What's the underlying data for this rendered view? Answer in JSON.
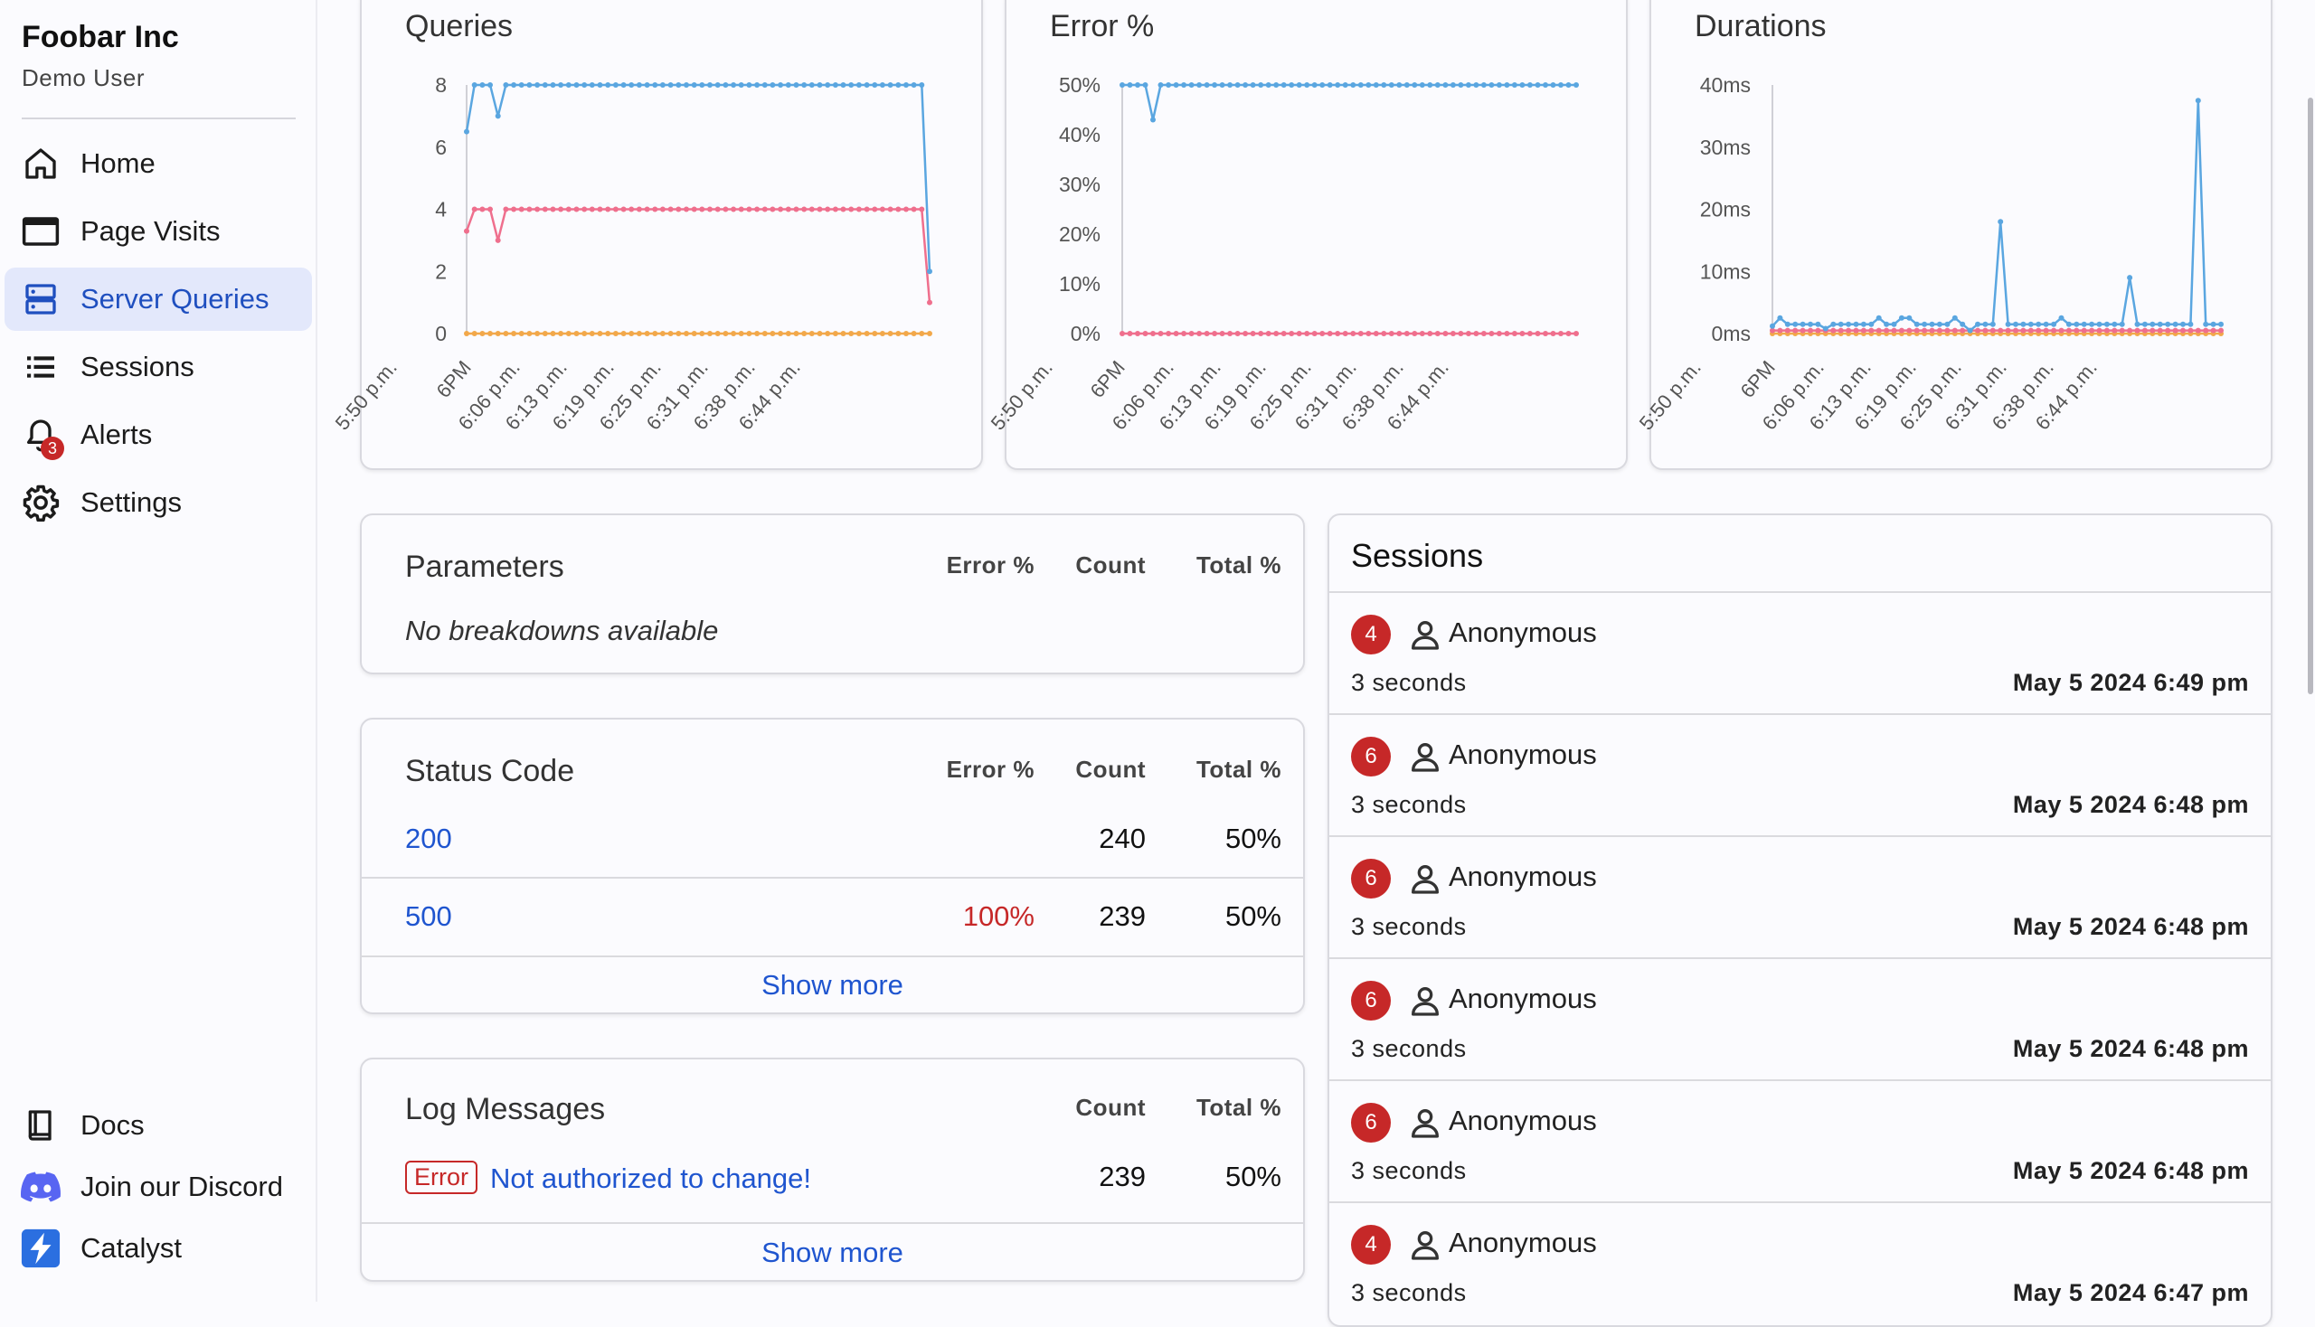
{
  "sidebar": {
    "org_name": "Foobar Inc",
    "user_name": "Demo User",
    "items": [
      {
        "label": "Home",
        "icon": "home-icon"
      },
      {
        "label": "Page Visits",
        "icon": "browser-window-icon"
      },
      {
        "label": "Server Queries",
        "icon": "server-icon",
        "active": true
      },
      {
        "label": "Sessions",
        "icon": "list-icon"
      },
      {
        "label": "Alerts",
        "icon": "bell-icon",
        "badge": "3"
      },
      {
        "label": "Settings",
        "icon": "gear-icon"
      }
    ],
    "bottom_items": [
      {
        "label": "Docs",
        "icon": "book-icon"
      },
      {
        "label": "Join our Discord",
        "icon": "discord-icon"
      },
      {
        "label": "Catalyst",
        "icon": "catalyst-logo-icon"
      }
    ]
  },
  "colors": {
    "accent": "#1f55cf",
    "active_bg": "#e3e8fb",
    "error": "#c62828",
    "series_blue": "#5aa6e0",
    "series_pink": "#ef6f8d",
    "series_orange": "#f2a84a"
  },
  "chart_data": [
    {
      "type": "line",
      "title": "Queries",
      "ylim": [
        0,
        8
      ],
      "y_ticks": [
        "0",
        "2",
        "4",
        "6",
        "8"
      ],
      "x_ticks": [
        "5:50 p.m.",
        "6PM",
        "6:06 p.m.",
        "6:13 p.m.",
        "6:19 p.m.",
        "6:25 p.m.",
        "6:31 p.m.",
        "6:38 p.m.",
        "6:44 p.m."
      ],
      "n_points": 60,
      "series": [
        {
          "color": "#5aa6e0",
          "values": [
            6.5,
            8,
            8,
            8,
            7,
            8,
            8,
            8,
            8,
            8,
            8,
            8,
            8,
            8,
            8,
            8,
            8,
            8,
            8,
            8,
            8,
            8,
            8,
            8,
            8,
            8,
            8,
            8,
            8,
            8,
            8,
            8,
            8,
            8,
            8,
            8,
            8,
            8,
            8,
            8,
            8,
            8,
            8,
            8,
            8,
            8,
            8,
            8,
            8,
            8,
            8,
            8,
            8,
            8,
            8,
            8,
            8,
            8,
            8,
            2
          ]
        },
        {
          "color": "#ef6f8d",
          "values": [
            3.3,
            4,
            4,
            4,
            3,
            4,
            4,
            4,
            4,
            4,
            4,
            4,
            4,
            4,
            4,
            4,
            4,
            4,
            4,
            4,
            4,
            4,
            4,
            4,
            4,
            4,
            4,
            4,
            4,
            4,
            4,
            4,
            4,
            4,
            4,
            4,
            4,
            4,
            4,
            4,
            4,
            4,
            4,
            4,
            4,
            4,
            4,
            4,
            4,
            4,
            4,
            4,
            4,
            4,
            4,
            4,
            4,
            4,
            4,
            1
          ]
        },
        {
          "color": "#f2a84a",
          "values": [
            0,
            0,
            0,
            0,
            0,
            0,
            0,
            0,
            0,
            0,
            0,
            0,
            0,
            0,
            0,
            0,
            0,
            0,
            0,
            0,
            0,
            0,
            0,
            0,
            0,
            0,
            0,
            0,
            0,
            0,
            0,
            0,
            0,
            0,
            0,
            0,
            0,
            0,
            0,
            0,
            0,
            0,
            0,
            0,
            0,
            0,
            0,
            0,
            0,
            0,
            0,
            0,
            0,
            0,
            0,
            0,
            0,
            0,
            0,
            0
          ]
        }
      ]
    },
    {
      "type": "line",
      "title": "Error %",
      "ylim": [
        0,
        50
      ],
      "y_ticks": [
        "0%",
        "10%",
        "20%",
        "30%",
        "40%",
        "50%"
      ],
      "x_ticks": [
        "5:50 p.m.",
        "6PM",
        "6:06 p.m.",
        "6:13 p.m.",
        "6:19 p.m.",
        "6:25 p.m.",
        "6:31 p.m.",
        "6:38 p.m.",
        "6:44 p.m."
      ],
      "n_points": 60,
      "series": [
        {
          "color": "#5aa6e0",
          "values": [
            50,
            50,
            50,
            50,
            43,
            50,
            50,
            50,
            50,
            50,
            50,
            50,
            50,
            50,
            50,
            50,
            50,
            50,
            50,
            50,
            50,
            50,
            50,
            50,
            50,
            50,
            50,
            50,
            50,
            50,
            50,
            50,
            50,
            50,
            50,
            50,
            50,
            50,
            50,
            50,
            50,
            50,
            50,
            50,
            50,
            50,
            50,
            50,
            50,
            50,
            50,
            50,
            50,
            50,
            50,
            50,
            50,
            50,
            50,
            50
          ]
        },
        {
          "color": "#ef6f8d",
          "values": [
            0,
            0,
            0,
            0,
            0,
            0,
            0,
            0,
            0,
            0,
            0,
            0,
            0,
            0,
            0,
            0,
            0,
            0,
            0,
            0,
            0,
            0,
            0,
            0,
            0,
            0,
            0,
            0,
            0,
            0,
            0,
            0,
            0,
            0,
            0,
            0,
            0,
            0,
            0,
            0,
            0,
            0,
            0,
            0,
            0,
            0,
            0,
            0,
            0,
            0,
            0,
            0,
            0,
            0,
            0,
            0,
            0,
            0,
            0,
            0
          ]
        }
      ]
    },
    {
      "type": "line",
      "title": "Durations",
      "ylim": [
        0,
        40
      ],
      "y_ticks": [
        "0ms",
        "10ms",
        "20ms",
        "30ms",
        "40ms"
      ],
      "x_ticks": [
        "5:50 p.m.",
        "6PM",
        "6:06 p.m.",
        "6:13 p.m.",
        "6:19 p.m.",
        "6:25 p.m.",
        "6:31 p.m.",
        "6:38 p.m.",
        "6:44 p.m."
      ],
      "n_points": 60,
      "series": [
        {
          "color": "#5aa6e0",
          "values": [
            1.2,
            2.5,
            1.5,
            1.5,
            1.5,
            1.5,
            1.5,
            0.8,
            1.5,
            1.5,
            1.5,
            1.5,
            1.5,
            1.5,
            2.5,
            1.5,
            1.5,
            2.5,
            2.5,
            1.5,
            1.5,
            1.5,
            1.5,
            1.5,
            2.5,
            1.5,
            0.5,
            1.5,
            1.5,
            1.5,
            18,
            1.5,
            1.5,
            1.5,
            1.5,
            1.5,
            1.5,
            1.5,
            2.5,
            1.5,
            1.5,
            1.5,
            1.5,
            1.5,
            1.5,
            1.5,
            1.5,
            9,
            1.5,
            1.5,
            1.5,
            1.5,
            1.5,
            1.5,
            1.5,
            1.5,
            37.5,
            1.5,
            1.5,
            1.5
          ]
        },
        {
          "color": "#ef6f8d",
          "values": [
            0.5,
            0.5,
            0.5,
            0.5,
            0.5,
            0.5,
            0.5,
            0.5,
            0.5,
            0.5,
            0.5,
            0.5,
            0.5,
            0.5,
            0.5,
            0.5,
            0.5,
            0.5,
            0.5,
            0.5,
            0.5,
            0.5,
            0.5,
            0.5,
            0.5,
            0.5,
            0.5,
            0.5,
            0.5,
            0.5,
            0.5,
            0.5,
            0.5,
            0.5,
            0.5,
            0.5,
            0.5,
            0.5,
            0.5,
            0.5,
            0.5,
            0.5,
            0.5,
            0.5,
            0.5,
            0.5,
            0.5,
            0.5,
            0.5,
            0.5,
            0.5,
            0.5,
            0.5,
            0.5,
            0.5,
            0.5,
            0.5,
            0.5,
            0.5,
            0.5
          ]
        },
        {
          "color": "#f2a84a",
          "values": [
            0,
            0,
            0,
            0,
            0,
            0,
            0,
            0,
            0,
            0,
            0,
            0,
            0,
            0,
            0,
            0,
            0,
            0,
            0,
            0,
            0,
            0,
            0,
            0,
            0,
            0,
            0,
            0,
            0,
            0,
            0,
            0,
            0,
            0,
            0,
            0,
            0,
            0,
            0,
            0,
            0,
            0,
            0,
            0,
            0,
            0,
            0,
            0,
            0,
            0,
            0,
            0,
            0,
            0,
            0,
            0,
            0,
            0,
            0,
            0
          ]
        }
      ]
    }
  ],
  "parameters": {
    "title": "Parameters",
    "headers": [
      "Error %",
      "Count",
      "Total %"
    ],
    "empty": "No breakdowns available"
  },
  "status_code": {
    "title": "Status Code",
    "headers": [
      "Error %",
      "Count",
      "Total %"
    ],
    "rows": [
      {
        "code": "200",
        "error": "",
        "count": "240",
        "total": "50%"
      },
      {
        "code": "500",
        "error": "100%",
        "count": "239",
        "total": "50%"
      }
    ],
    "show_more": "Show more"
  },
  "log_messages": {
    "title": "Log Messages",
    "headers": [
      "Count",
      "Total %"
    ],
    "rows": [
      {
        "level": "Error",
        "message": "Not authorized to change!",
        "count": "239",
        "total": "50%"
      }
    ],
    "show_more": "Show more"
  },
  "sessions": {
    "title": "Sessions",
    "items": [
      {
        "count": "4",
        "user": "Anonymous",
        "duration": "3 seconds",
        "date": "May 5 2024 6:49 pm"
      },
      {
        "count": "6",
        "user": "Anonymous",
        "duration": "3 seconds",
        "date": "May 5 2024 6:48 pm"
      },
      {
        "count": "6",
        "user": "Anonymous",
        "duration": "3 seconds",
        "date": "May 5 2024 6:48 pm"
      },
      {
        "count": "6",
        "user": "Anonymous",
        "duration": "3 seconds",
        "date": "May 5 2024 6:48 pm"
      },
      {
        "count": "6",
        "user": "Anonymous",
        "duration": "3 seconds",
        "date": "May 5 2024 6:48 pm"
      },
      {
        "count": "4",
        "user": "Anonymous",
        "duration": "3 seconds",
        "date": "May 5 2024 6:47 pm"
      }
    ]
  }
}
